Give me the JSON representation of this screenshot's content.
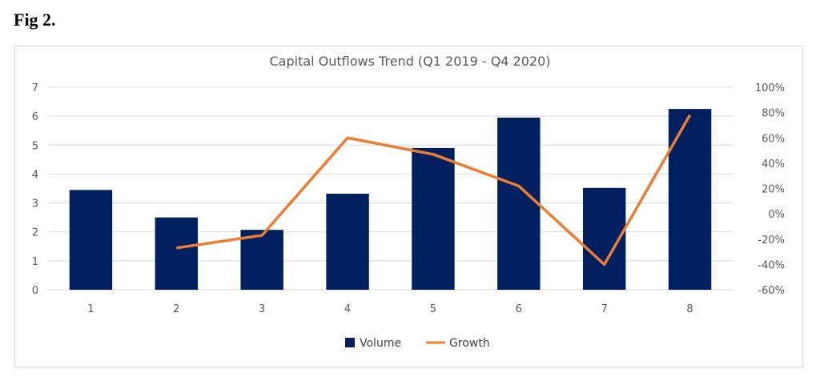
{
  "figure_label": "Fig 2.",
  "colors": {
    "bar": "#002060",
    "line": "#ED7D31",
    "grid": "#d9d9d9",
    "text": "#595959"
  },
  "chart_data": {
    "type": "bar",
    "combo": "bar + line (secondary axis)",
    "title": "Capital Outflows Trend (Q1 2019 - Q4 2020)",
    "categories": [
      "1",
      "2",
      "3",
      "4",
      "5",
      "6",
      "7",
      "8"
    ],
    "series": [
      {
        "name": "Volume",
        "type": "bar",
        "axis": "primary",
        "values": [
          3.45,
          2.5,
          2.07,
          3.32,
          4.9,
          5.95,
          3.52,
          6.25
        ]
      },
      {
        "name": "Growth",
        "type": "line",
        "axis": "secondary",
        "values": [
          null,
          -0.27,
          -0.17,
          0.6,
          0.47,
          0.22,
          -0.4,
          0.78
        ]
      }
    ],
    "y_left": {
      "min": 0,
      "max": 7,
      "ticks": [
        "0",
        "1",
        "2",
        "3",
        "4",
        "5",
        "6",
        "7"
      ]
    },
    "y_right": {
      "min": -0.6,
      "max": 1.0,
      "ticks": [
        "-60%",
        "-40%",
        "-20%",
        "0%",
        "20%",
        "40%",
        "60%",
        "80%",
        "100%"
      ]
    },
    "grid": true,
    "legend_position": "bottom"
  }
}
